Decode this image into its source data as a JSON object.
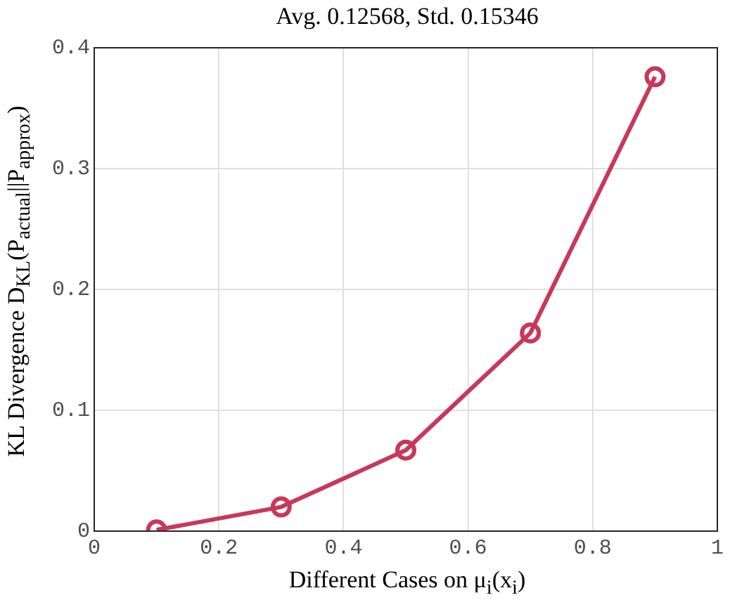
{
  "chart_data": {
    "type": "line",
    "title": "Avg. 0.12568, Std. 0.15346",
    "xlabel": "Different Cases on μ$_{i}$(x$_{i}$)",
    "ylabel": "KL Divergence D$_{KL}$(P$_{actual}$||P$_{approx}$)",
    "x": [
      0.1,
      0.3,
      0.5,
      0.7,
      0.9
    ],
    "series": [
      {
        "color": "#c8385a",
        "values": [
          0.001,
          0.02,
          0.067,
          0.164,
          0.376
        ]
      }
    ],
    "xlim": [
      0,
      1
    ],
    "xticks": [
      0,
      0.2,
      0.4,
      0.6,
      0.8,
      1
    ],
    "ylim": [
      0,
      0.4
    ],
    "yticks": [
      0,
      0.1,
      0.2,
      0.3,
      0.4
    ],
    "grid": true,
    "marker": "circle",
    "line_style": "solid"
  }
}
